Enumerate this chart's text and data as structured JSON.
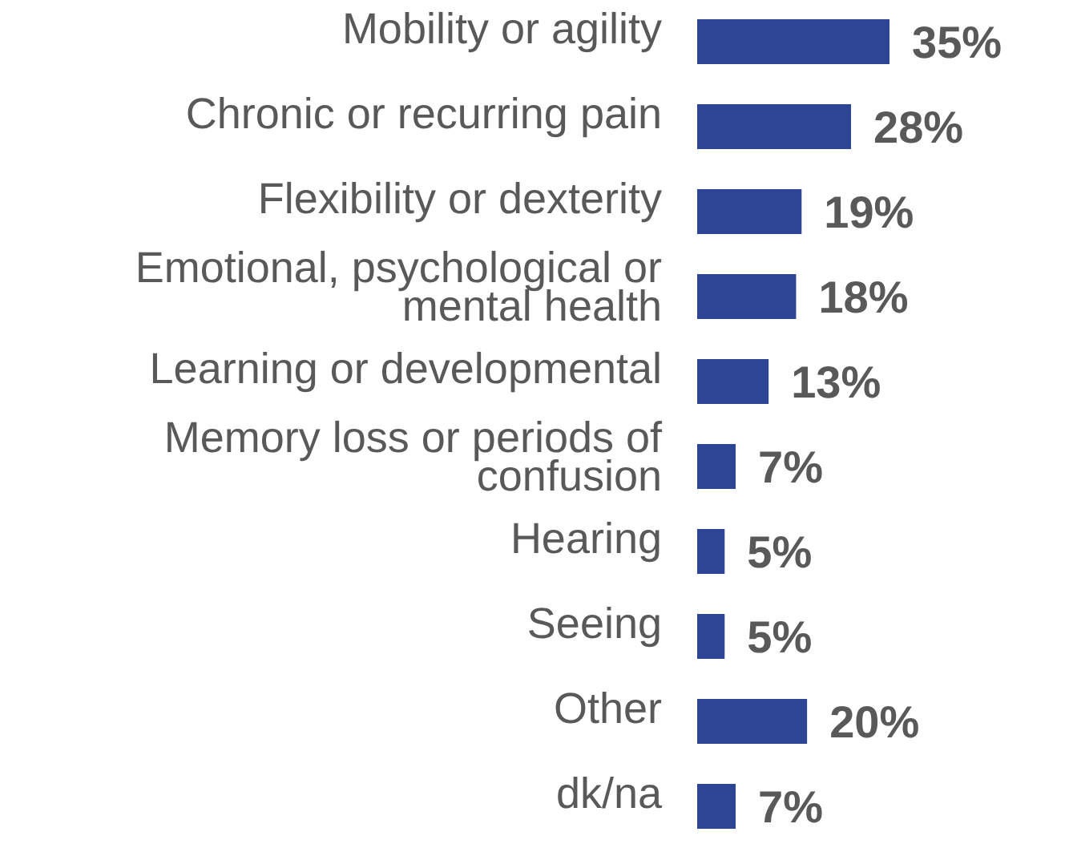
{
  "chart_data": {
    "type": "bar",
    "orientation": "horizontal",
    "value_labels": [
      "35%",
      "28%",
      "19%",
      "18%",
      "13%",
      "7%",
      "5%",
      "5%",
      "20%",
      "7%"
    ],
    "categories": [
      "Mobility or agility",
      "Chronic or recurring pain",
      "Flexibility or dexterity",
      "Emotional, psychological or mental health",
      "Learning or developmental",
      "Memory loss or periods of confusion",
      "Hearing",
      "Seeing",
      "Other",
      "dk/na"
    ],
    "values": [
      35,
      28,
      19,
      18,
      13,
      7,
      5,
      5,
      20,
      7
    ],
    "color": "#2e4596"
  }
}
